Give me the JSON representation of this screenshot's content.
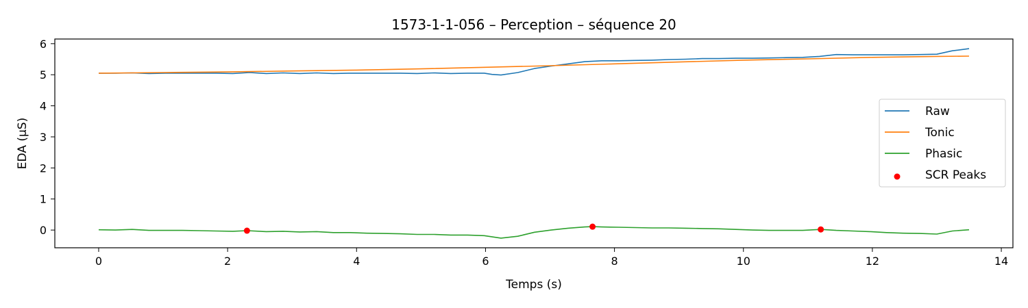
{
  "chart_data": {
    "type": "line",
    "title": "1573-1-1-056 – Perception – séquence 20",
    "xlabel": "Temps (s)",
    "ylabel": "EDA (µS)",
    "xlim": [
      -0.68,
      14.18
    ],
    "ylim": [
      -0.57,
      6.15
    ],
    "xticks": [
      0,
      2,
      4,
      6,
      8,
      10,
      12,
      14
    ],
    "yticks": [
      0,
      1,
      2,
      3,
      4,
      5,
      6
    ],
    "grid": false,
    "legend_position": "center-right",
    "series": [
      {
        "name": "Raw",
        "color": "#1f77b4",
        "x": [
          0,
          0.26,
          0.52,
          0.78,
          1.04,
          1.3,
          1.56,
          1.82,
          2.08,
          2.34,
          2.6,
          2.86,
          3.12,
          3.38,
          3.64,
          3.9,
          4.16,
          4.42,
          4.68,
          4.94,
          5.2,
          5.46,
          5.72,
          5.98,
          6.1,
          6.24,
          6.5,
          6.76,
          7.02,
          7.28,
          7.54,
          7.8,
          8.06,
          8.32,
          8.58,
          8.84,
          9.1,
          9.36,
          9.62,
          9.88,
          10.14,
          10.4,
          10.66,
          10.92,
          11.18,
          11.44,
          11.7,
          11.96,
          12.22,
          12.48,
          12.74,
          13.0,
          13.24,
          13.5
        ],
        "y": [
          5.05,
          5.05,
          5.06,
          5.04,
          5.05,
          5.05,
          5.05,
          5.05,
          5.04,
          5.07,
          5.04,
          5.06,
          5.04,
          5.06,
          5.04,
          5.05,
          5.05,
          5.05,
          5.05,
          5.04,
          5.06,
          5.04,
          5.05,
          5.05,
          5.01,
          4.99,
          5.07,
          5.2,
          5.28,
          5.35,
          5.42,
          5.45,
          5.45,
          5.46,
          5.47,
          5.49,
          5.5,
          5.52,
          5.52,
          5.53,
          5.53,
          5.54,
          5.55,
          5.56,
          5.59,
          5.65,
          5.64,
          5.64,
          5.64,
          5.64,
          5.65,
          5.66,
          5.77,
          5.84
        ]
      },
      {
        "name": "Tonic",
        "color": "#ff7f0e",
        "x": [
          0,
          0.5,
          1,
          2,
          3,
          4,
          5,
          6,
          7,
          8,
          9,
          10,
          11,
          12,
          13,
          13.5
        ],
        "y": [
          5.05,
          5.06,
          5.07,
          5.09,
          5.12,
          5.15,
          5.19,
          5.24,
          5.29,
          5.35,
          5.41,
          5.47,
          5.51,
          5.56,
          5.59,
          5.6
        ]
      },
      {
        "name": "Phasic",
        "color": "#2ca02c",
        "x": [
          0,
          0.26,
          0.52,
          0.78,
          1.04,
          1.3,
          1.56,
          1.82,
          2.08,
          2.3,
          2.6,
          2.86,
          3.12,
          3.38,
          3.64,
          3.9,
          4.16,
          4.42,
          4.68,
          4.94,
          5.2,
          5.46,
          5.72,
          5.98,
          6.24,
          6.5,
          6.76,
          7.02,
          7.28,
          7.54,
          7.66,
          7.8,
          8.06,
          8.32,
          8.58,
          8.84,
          9.1,
          9.36,
          9.62,
          9.88,
          10.14,
          10.4,
          10.66,
          10.92,
          11.2,
          11.44,
          11.7,
          11.96,
          12.22,
          12.48,
          12.74,
          13.0,
          13.24,
          13.5
        ],
        "y": [
          0.01,
          0.0,
          0.02,
          -0.01,
          -0.01,
          -0.01,
          -0.02,
          -0.03,
          -0.04,
          -0.02,
          -0.05,
          -0.04,
          -0.06,
          -0.05,
          -0.08,
          -0.08,
          -0.1,
          -0.11,
          -0.12,
          -0.14,
          -0.14,
          -0.16,
          -0.16,
          -0.18,
          -0.26,
          -0.2,
          -0.07,
          0.0,
          0.06,
          0.1,
          0.11,
          0.1,
          0.09,
          0.08,
          0.07,
          0.07,
          0.06,
          0.05,
          0.04,
          0.02,
          0.0,
          -0.01,
          -0.01,
          -0.01,
          0.02,
          -0.01,
          -0.03,
          -0.05,
          -0.08,
          -0.1,
          -0.11,
          -0.13,
          -0.03,
          0.01
        ]
      }
    ],
    "scatter": {
      "name": "SCR Peaks",
      "color": "#ff0000",
      "x": [
        2.3,
        7.66,
        11.2
      ],
      "y": [
        -0.02,
        0.11,
        0.02
      ]
    }
  }
}
